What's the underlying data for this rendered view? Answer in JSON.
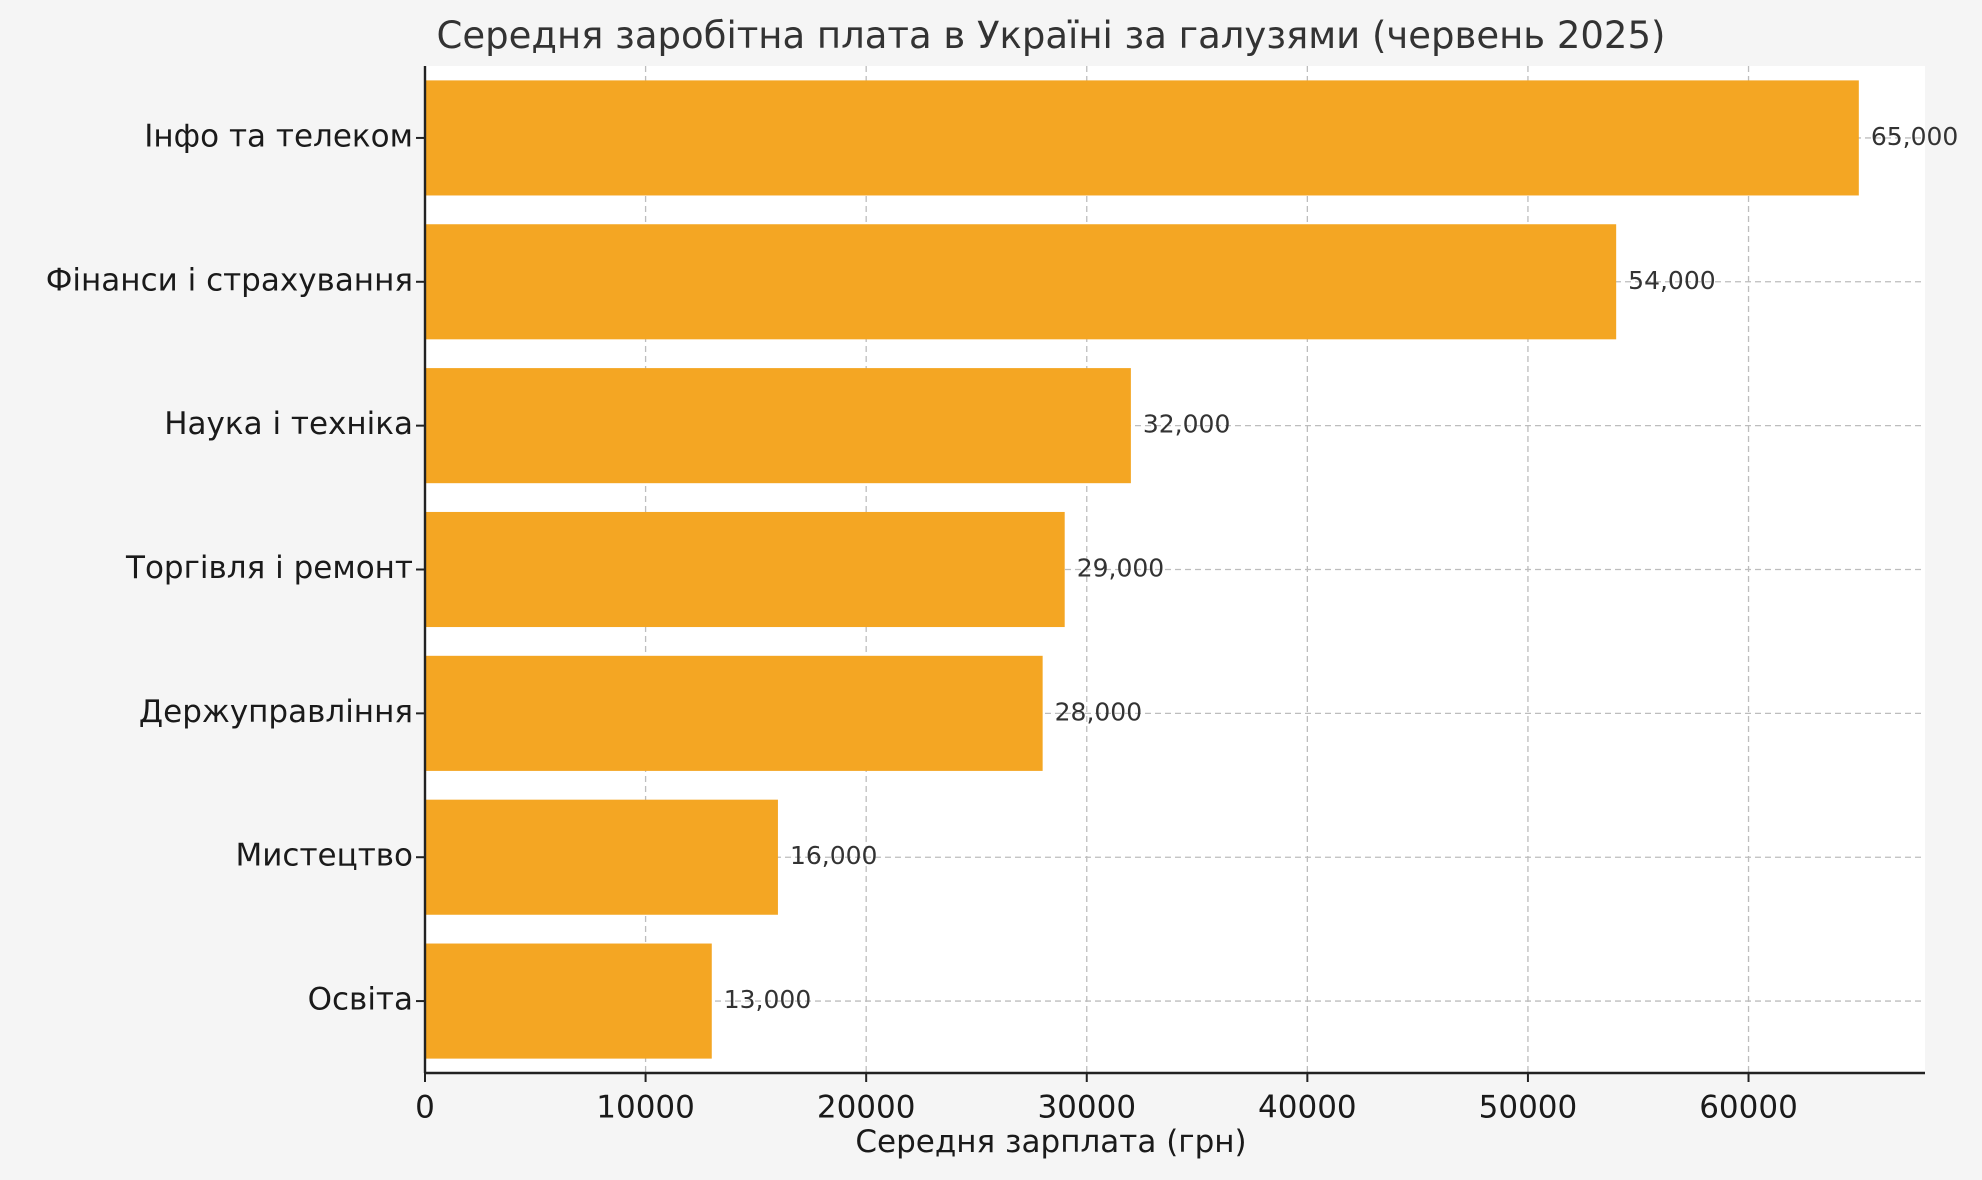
{
  "chart_data": {
    "type": "bar",
    "orientation": "horizontal",
    "title": "Середня заробітна плата в Україні за галузями (червень 2025)",
    "xlabel": "Середня зарплата (грн)",
    "ylabel": "",
    "categories": [
      "Інфо та телеком",
      "Фінанси і страхування",
      "Наука і техніка",
      "Торгівля і ремонт",
      "Держуправління",
      "Мистецтво",
      "Освіта"
    ],
    "values": [
      65000,
      54000,
      32000,
      29000,
      28000,
      16000,
      13000
    ],
    "value_labels": [
      "65,000",
      "54,000",
      "32,000",
      "29,000",
      "28,000",
      "16,000",
      "13,000"
    ],
    "xlim": [
      0,
      68000
    ],
    "xticks": [
      0,
      10000,
      20000,
      30000,
      40000,
      50000,
      60000
    ],
    "xtick_labels": [
      "0",
      "10000",
      "20000",
      "30000",
      "40000",
      "50000",
      "60000"
    ],
    "grid": true,
    "bar_color": "#f4a623",
    "plot_background": "#ffffff",
    "figure_background": "#f5f5f5"
  }
}
